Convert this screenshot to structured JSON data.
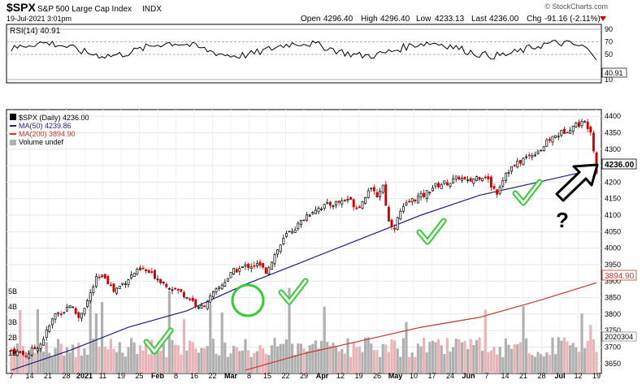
{
  "header": {
    "symbol": "$SPX",
    "name": "S&P 500 Large Cap Index",
    "exchange": "INDX",
    "date": "19-Jul-2021 3:01pm",
    "open_label": "Open",
    "open": "4296.40",
    "high_label": "High",
    "high": "4296.40",
    "low_label": "Low",
    "low": "4233.13",
    "last_label": "Last",
    "last": "4236.00",
    "chg_label": "Chg",
    "chg": "-91.16 (-2.11%)",
    "brand": "© StockCharts.com"
  },
  "rsi": {
    "label": "RSI(14) 40.91",
    "value_tag": "40.91",
    "ticks": [
      "90",
      "70",
      "50",
      "10"
    ]
  },
  "legend": {
    "price": "$SPX (Daily) 4236.00",
    "ma50": "MA(50) 4239.86",
    "ma200": "MA(200) 3894.90",
    "volume": "Volume undef"
  },
  "tags": {
    "last": "4236.00",
    "ma200": "3894.90",
    "volume": "2020304"
  },
  "annotation": {
    "question": "?"
  },
  "colors": {
    "up": "#000000",
    "down": "#cc0000",
    "ma50": "#1f1f7a",
    "ma200": "#c0392b",
    "vol_up": "#b0b0b0",
    "vol_down": "#e8b4b8",
    "check": "#33cc33"
  },
  "chart_data": {
    "type": "candlestick",
    "period": "Daily",
    "y_ticks": [
      "4400",
      "4350",
      "4300",
      "4250",
      "4200",
      "4150",
      "4100",
      "4050",
      "4000",
      "3950",
      "3900",
      "3850",
      "3800",
      "3750",
      "3700",
      "3650"
    ],
    "ylim": [
      3620,
      4420
    ],
    "volume_ticks": [
      "5B",
      "4B",
      "3B",
      "2B",
      "1B"
    ],
    "x_ticks": [
      "7",
      "14",
      "21",
      "28",
      "2021",
      "11",
      "19",
      "25",
      "Feb",
      "8",
      "16",
      "22",
      "Mar",
      "8",
      "15",
      "22",
      "29",
      "Apr",
      "12",
      "19",
      "26",
      "May",
      "10",
      "17",
      "24",
      "Jun",
      "7",
      "14",
      "21",
      "28",
      "Jul",
      "12",
      "19"
    ],
    "close_path": [
      [
        0,
        3690
      ],
      [
        5,
        3675
      ],
      [
        10,
        3710
      ],
      [
        15,
        3800
      ],
      [
        18,
        3810
      ],
      [
        20,
        3830
      ],
      [
        23,
        3790
      ],
      [
        26,
        3840
      ],
      [
        29,
        3905
      ],
      [
        32,
        3915
      ],
      [
        35,
        3870
      ],
      [
        39,
        3900
      ],
      [
        42,
        3925
      ],
      [
        45,
        3935
      ],
      [
        49,
        3915
      ],
      [
        53,
        3890
      ],
      [
        56,
        3875
      ],
      [
        59,
        3860
      ],
      [
        62,
        3840
      ],
      [
        64,
        3815
      ],
      [
        66,
        3830
      ],
      [
        70,
        3870
      ],
      [
        74,
        3910
      ],
      [
        76,
        3930
      ],
      [
        80,
        3945
      ],
      [
        84,
        3950
      ],
      [
        87,
        3930
      ],
      [
        90,
        3980
      ],
      [
        94,
        4040
      ],
      [
        98,
        4070
      ],
      [
        101,
        4100
      ],
      [
        104,
        4120
      ],
      [
        108,
        4130
      ],
      [
        112,
        4140
      ],
      [
        115,
        4150
      ],
      [
        118,
        4125
      ],
      [
        120,
        4140
      ],
      [
        122,
        4180
      ],
      [
        125,
        4160
      ],
      [
        127,
        4190
      ],
      [
        129,
        4080
      ],
      [
        131,
        4065
      ],
      [
        133,
        4110
      ],
      [
        136,
        4140
      ],
      [
        138,
        4150
      ],
      [
        141,
        4160
      ],
      [
        144,
        4185
      ],
      [
        147,
        4195
      ],
      [
        150,
        4200
      ],
      [
        153,
        4215
      ],
      [
        156,
        4200
      ],
      [
        159,
        4215
      ],
      [
        162,
        4220
      ],
      [
        164,
        4190
      ],
      [
        166,
        4170
      ],
      [
        169,
        4230
      ],
      [
        172,
        4250
      ],
      [
        175,
        4270
      ],
      [
        178,
        4285
      ],
      [
        181,
        4300
      ],
      [
        184,
        4330
      ],
      [
        187,
        4345
      ],
      [
        190,
        4360
      ],
      [
        193,
        4375
      ],
      [
        196,
        4380
      ],
      [
        198,
        4360
      ],
      [
        199,
        4296
      ],
      [
        200,
        4236
      ]
    ],
    "ma50_path": [
      [
        0,
        3630
      ],
      [
        20,
        3690
      ],
      [
        40,
        3760
      ],
      [
        60,
        3810
      ],
      [
        80,
        3890
      ],
      [
        100,
        3960
      ],
      [
        120,
        4030
      ],
      [
        140,
        4100
      ],
      [
        160,
        4160
      ],
      [
        180,
        4200
      ],
      [
        200,
        4240
      ]
    ],
    "ma200_path": [
      [
        80,
        3630
      ],
      [
        100,
        3680
      ],
      [
        120,
        3720
      ],
      [
        140,
        3760
      ],
      [
        160,
        3790
      ],
      [
        180,
        3840
      ],
      [
        200,
        3895
      ]
    ],
    "checkmarks": [
      "Jan 29",
      "Mar 4",
      "Mar 25",
      "May 12",
      "Jun 18"
    ]
  }
}
